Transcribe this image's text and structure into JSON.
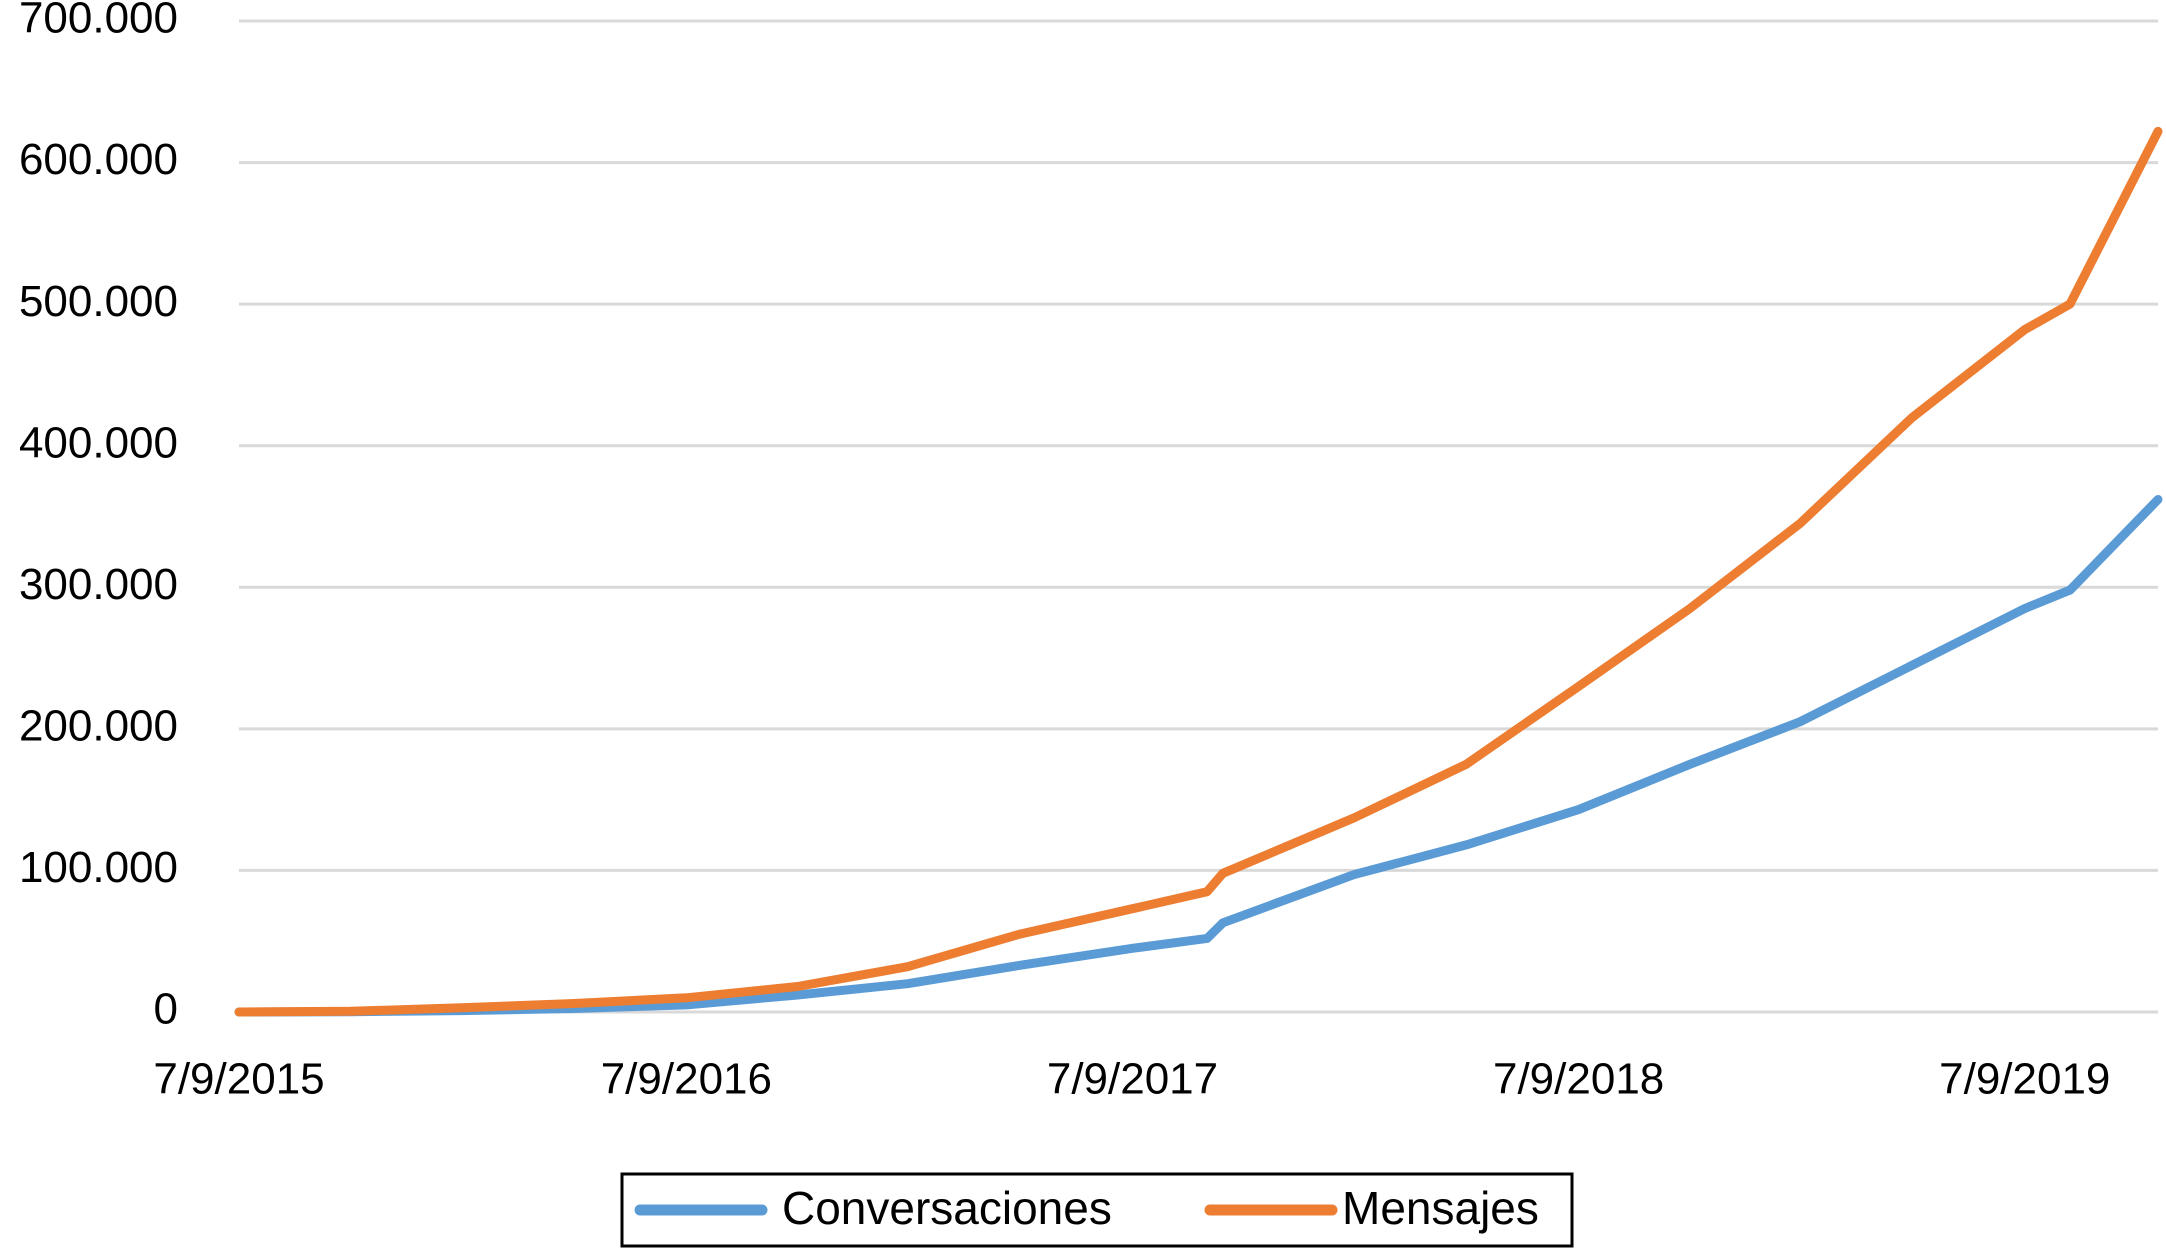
{
  "chart_data": {
    "type": "line",
    "x": [
      "7/9/2015",
      "7/12/2015",
      "7/3/2016",
      "7/6/2016",
      "7/9/2016",
      "7/12/2016",
      "7/3/2017",
      "7/6/2017",
      "7/9/2017",
      "7/11/2017",
      "20/11/2017",
      "7/3/2018",
      "7/6/2018",
      "7/9/2018",
      "7/12/2018",
      "7/3/2019",
      "7/6/2019",
      "7/9/2019",
      "14/10/2019",
      "25/12/2019"
    ],
    "series": [
      {
        "name": "Conversaciones",
        "color": "#5b9bd5",
        "values": [
          0,
          200,
          1000,
          2500,
          5000,
          12000,
          20000,
          33000,
          45000,
          52000,
          63000,
          97000,
          118000,
          143000,
          175000,
          205000,
          245000,
          285000,
          298000,
          362000
        ]
      },
      {
        "name": "Mensajes",
        "color": "#ed7d31",
        "values": [
          0,
          500,
          3000,
          6000,
          10000,
          18000,
          32000,
          55000,
          73000,
          85000,
          98000,
          137000,
          175000,
          230000,
          285000,
          345000,
          420000,
          482000,
          500000,
          622000
        ]
      }
    ],
    "xlim": [
      "7/9/2015",
      "25/12/2019"
    ],
    "xticks": [
      "7/9/2015",
      "7/9/2016",
      "7/9/2017",
      "7/9/2018",
      "7/9/2019"
    ],
    "ylim": [
      0,
      700000
    ],
    "yticks": [
      0,
      {
        "value": 100000,
        "label": "100.000"
      },
      {
        "value": 200000,
        "label": "200.000"
      },
      {
        "value": 300000,
        "label": "300.000"
      },
      {
        "value": 400000,
        "label": "400.000"
      },
      {
        "value": 500000,
        "label": "500.000"
      },
      {
        "value": 600000,
        "label": "600.000"
      },
      {
        "value": 700000,
        "label": "700.000"
      }
    ],
    "grid": true,
    "legend": "bottom"
  }
}
